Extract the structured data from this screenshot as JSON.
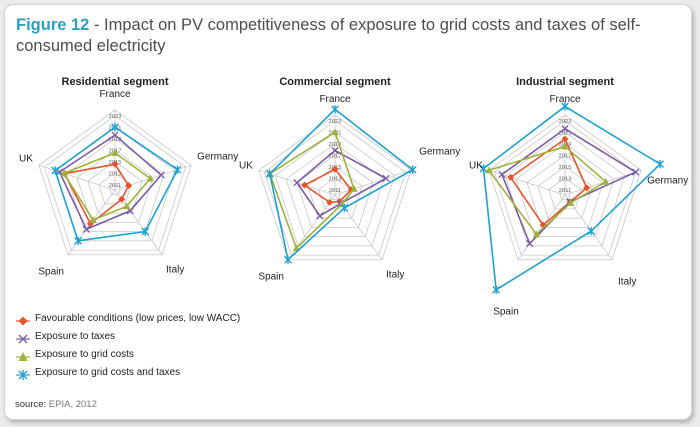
{
  "header": {
    "figure_label": "Figure 12",
    "title_rest": " - Impact on PV competitiveness of exposure to grid costs and taxes of self-consumed electricity"
  },
  "colors": {
    "favourable": "#e8542a",
    "taxes": "#7b5aa6",
    "grid": "#9db33a",
    "grid_taxes": "#1da1d1",
    "accent": "#2a9fc4",
    "web": "#c8c8c8"
  },
  "chart_data": [
    {
      "type": "radar",
      "title": "Residential segment",
      "axes": [
        "France",
        "Germany",
        "Italy",
        "Spain",
        "UK"
      ],
      "rings": [
        "2011",
        "2013",
        "2015",
        "2017",
        "2019",
        "2021",
        "2023"
      ],
      "rlim": [
        2010,
        2024
      ],
      "series": [
        {
          "name": "Favourable conditions (low prices, low WACC)",
          "values": [
            2014.5,
            2012.5,
            2012,
            2017.3,
            2019.3
          ]
        },
        {
          "name": "Exposure to taxes",
          "values": [
            2019.6,
            2018.5,
            2014.5,
            2018.5,
            2020.2
          ]
        },
        {
          "name": "Exposure to grid costs",
          "values": [
            2016.5,
            2016.5,
            2013.5,
            2016.5,
            2019.4
          ]
        },
        {
          "name": "Exposure to grid costs and taxes",
          "values": [
            2021,
            2021.5,
            2019,
            2021,
            2021
          ]
        }
      ]
    },
    {
      "type": "radar",
      "title": "Commercial segment",
      "axes": [
        "France",
        "Germany",
        "Italy",
        "Spain",
        "UK"
      ],
      "rings": [
        "2011",
        "2013",
        "2015",
        "2017",
        "2019",
        "2021",
        "2023"
      ],
      "rlim": [
        2010,
        2024
      ],
      "series": [
        {
          "name": "Favourable conditions (low prices, low WACC)",
          "values": [
            2014.5,
            2013,
            2011.4,
            2011.6,
            2015.6
          ]
        },
        {
          "name": "Exposure to taxes",
          "values": [
            2017.8,
            2019.4,
            2011.8,
            2014.5,
            2017
          ]
        },
        {
          "name": "Exposure to grid costs",
          "values": [
            2021,
            2013.5,
            2012,
            2021.5,
            2022
          ]
        },
        {
          "name": "Exposure to grid costs and taxes",
          "values": [
            2025,
            2024.3,
            2012.8,
            2024,
            2022
          ]
        }
      ]
    },
    {
      "type": "radar",
      "title": "Industrial segment",
      "axes": [
        "France",
        "Germany",
        "Italy",
        "Spain",
        "UK"
      ],
      "rings": [
        "2011",
        "2013",
        "2015",
        "2017",
        "2019",
        "2021",
        "2023"
      ],
      "rlim": [
        2010,
        2024
      ],
      "series": [
        {
          "name": "Favourable conditions (low prices, low WACC)",
          "values": [
            2019.8,
            2014,
            2011.5,
            2016.5,
            2020
          ]
        },
        {
          "name": "Exposure to taxes",
          "values": [
            2021.6,
            2023,
            2011.5,
            2020.5,
            2021.6
          ]
        },
        {
          "name": "Exposure to grid costs",
          "values": [
            2018.5,
            2017.5,
            2011.7,
            2018.5,
            2024
          ]
        },
        {
          "name": "Exposure to grid costs and taxes",
          "values": [
            2025.5,
            2027.5,
            2017.8,
            2030.5,
            2025
          ]
        }
      ]
    }
  ],
  "legend": [
    {
      "label": "Favourable conditions (low prices, low WACC)",
      "marker": "diamond"
    },
    {
      "label": "Exposure to taxes",
      "marker": "x"
    },
    {
      "label": "Exposure to grid costs",
      "marker": "triangle"
    },
    {
      "label": "Exposure to grid costs and taxes",
      "marker": "star"
    }
  ],
  "source": {
    "label": "source:",
    "value": "EPIA, 2012"
  }
}
